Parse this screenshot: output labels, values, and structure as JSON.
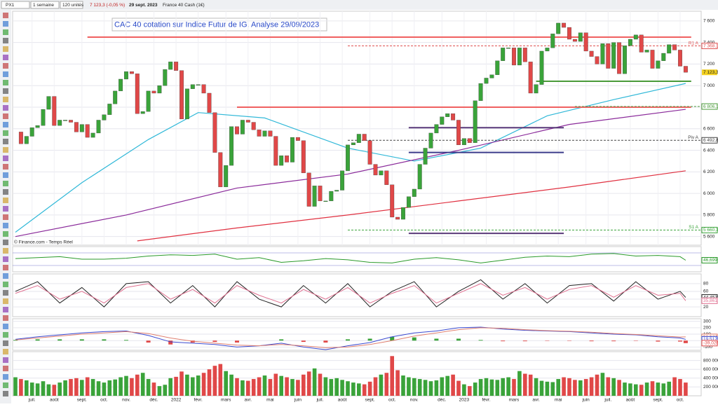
{
  "toolbar": {
    "symbol": "PX1",
    "period": "1 semaine",
    "units": "120 unités",
    "quote": "7 123,3 (-0,05 %)",
    "date": "29 sept. 2023",
    "instrument": "France 40 Cash (1€)"
  },
  "chart_data": [
    {
      "type": "candlestick",
      "title": "CAC 40 cotation sur Indice Futur de IG. Analyse 29/09/2023",
      "up_color": "#3aa33a",
      "down_color": "#e04848",
      "values": [
        6570,
        6460,
        6530,
        6610,
        6630,
        6780,
        6900,
        6630,
        6680,
        6680,
        6660,
        6570,
        6640,
        6520,
        6560,
        6680,
        6730,
        6830,
        6950,
        7060,
        7130,
        7110,
        6740,
        6760,
        6950,
        6930,
        7000,
        7150,
        7220,
        7140,
        6690,
        6970,
        7010,
        7010,
        6930,
        6750,
        6380,
        6060,
        6260,
        6620,
        6550,
        6680,
        6660,
        6590,
        6530,
        6580,
        6530,
        6260,
        6350,
        6290,
        6520,
        6490,
        6190,
        5880,
        6070,
        5930,
        5930,
        6020,
        6030,
        6210,
        6450,
        6470,
        6550,
        6490,
        6270,
        6170,
        6210,
        6080,
        5780,
        5760,
        5870,
        5970,
        6040,
        6270,
        6420,
        6560,
        6640,
        6710,
        6740,
        6680,
        6450,
        6510,
        6470,
        6860,
        7020,
        7070,
        7100,
        7230,
        7350,
        7350,
        7190,
        7350,
        7220,
        6930,
        7010,
        7320,
        7350,
        7480,
        7580,
        7540,
        7430,
        7410,
        7490,
        7320,
        7270,
        7200,
        7390,
        7160,
        7400,
        7110,
        7370,
        7430,
        7470,
        7310,
        7330,
        7160,
        7230,
        7300,
        7380,
        7330,
        7180,
        7123.3
      ],
      "ylim": [
        5520,
        7690
      ],
      "yticks": [
        {
          "value": 5600,
          "label": "5 600"
        },
        {
          "value": 5800,
          "label": "5 800"
        },
        {
          "value": 6000,
          "label": "6 000"
        },
        {
          "value": 6200,
          "label": "6 200"
        },
        {
          "value": 6400,
          "label": "6 400"
        },
        {
          "value": 6600,
          "label": "6 600"
        },
        {
          "value": 6800,
          "label": "6 800"
        },
        {
          "value": 7000,
          "label": "7 000"
        },
        {
          "value": 7200,
          "label": "7 200"
        },
        {
          "value": 7400,
          "label": "7 400"
        },
        {
          "value": 7600,
          "label": "7 600"
        }
      ],
      "xticks": [
        {
          "value": 3,
          "label": "juil."
        },
        {
          "value": 7,
          "label": "août"
        },
        {
          "value": 12,
          "label": "sept."
        },
        {
          "value": 16,
          "label": "oct."
        },
        {
          "value": 20,
          "label": "nov."
        },
        {
          "value": 25,
          "label": "déc."
        },
        {
          "value": 29,
          "label": "2022"
        },
        {
          "value": 33,
          "label": "févr."
        },
        {
          "value": 38,
          "label": "mars"
        },
        {
          "value": 42,
          "label": "avr."
        },
        {
          "value": 46,
          "label": "mai"
        },
        {
          "value": 51,
          "label": "juin"
        },
        {
          "value": 55,
          "label": "juil."
        },
        {
          "value": 59,
          "label": "août"
        },
        {
          "value": 64,
          "label": "sept."
        },
        {
          "value": 68,
          "label": "oct."
        },
        {
          "value": 72,
          "label": "nov."
        },
        {
          "value": 77,
          "label": "déc."
        },
        {
          "value": 81,
          "label": "2023"
        },
        {
          "value": 85,
          "label": "févr."
        },
        {
          "value": 90,
          "label": "mars"
        },
        {
          "value": 94,
          "label": "avr."
        },
        {
          "value": 98,
          "label": "mai"
        },
        {
          "value": 103,
          "label": "juin"
        },
        {
          "value": 107,
          "label": "juil."
        },
        {
          "value": 111,
          "label": "août"
        },
        {
          "value": 116,
          "label": "sept."
        },
        {
          "value": 120,
          "label": "oct."
        }
      ],
      "series": [
        {
          "color": "#30b8d8",
          "x": [
            0,
            12,
            24,
            33,
            45,
            60,
            72,
            84,
            96,
            108,
            121
          ],
          "values": [
            5640,
            6100,
            6500,
            6750,
            6700,
            6420,
            6300,
            6420,
            6720,
            6870,
            7020
          ]
        },
        {
          "color": "#8a2a9a",
          "x": [
            0,
            20,
            40,
            60,
            80,
            100,
            121
          ],
          "values": [
            5600,
            5800,
            6050,
            6180,
            6400,
            6640,
            6780
          ]
        },
        {
          "color": "#e03040",
          "x": [
            22,
            40,
            60,
            80,
            100,
            121
          ],
          "values": [
            5560,
            5680,
            5800,
            5930,
            6060,
            6210
          ]
        }
      ],
      "lines": [
        {
          "value": 7450,
          "color": "#f06060",
          "x": [
            13,
            122
          ]
        },
        {
          "value": 6800,
          "color": "#f06060",
          "x": [
            40,
            122
          ]
        },
        {
          "value": 7040,
          "color": "#4a9a3a",
          "x": [
            94,
            122
          ]
        },
        {
          "value": 6610,
          "color": "#5a3a7a",
          "x": [
            71,
            99
          ]
        },
        {
          "value": 6380,
          "color": "#3a3a8a",
          "x": [
            71,
            99
          ]
        },
        {
          "value": 5630,
          "color": "#5a3a7a",
          "x": [
            71,
            99
          ]
        }
      ],
      "levels": [
        {
          "name": "R1 A",
          "value": 7368.1,
          "label": "7 368,1",
          "color": "#e05050",
          "x": [
            60,
            122
          ]
        },
        {
          "value": 6806.1,
          "label": "6 806,1",
          "color": "#4a9a3a",
          "x": [
            101,
            122
          ]
        },
        {
          "name": "Piv A",
          "value": 6492.8,
          "label": "6 492,8",
          "color": "#444444",
          "x": [
            60,
            122
          ]
        },
        {
          "name": "S1 A",
          "value": 5660.3,
          "label": "5 660,3",
          "color": "#3aa33a",
          "x": [
            60,
            122
          ]
        }
      ],
      "last_label": {
        "value": 7123.3,
        "label": "7 123,3"
      }
    },
    {
      "type": "line",
      "source": "© Finance.com - Temps Réel",
      "ylim": [
        10,
        90
      ],
      "hlines": [
        70,
        30
      ],
      "series": [
        {
          "color": "#2a9a2a",
          "x": [
            0,
            4,
            8,
            12,
            16,
            20,
            24,
            28,
            32,
            36,
            40,
            44,
            48,
            52,
            56,
            60,
            64,
            68,
            72,
            76,
            80,
            84,
            88,
            92,
            96,
            100,
            104,
            108,
            112,
            116,
            120,
            121
          ],
          "values": [
            52,
            55,
            58,
            50,
            50,
            53,
            60,
            64,
            62,
            66,
            50,
            55,
            40,
            45,
            52,
            48,
            40,
            38,
            50,
            55,
            48,
            38,
            47,
            56,
            60,
            58,
            66,
            68,
            60,
            62,
            58,
            46.699
          ]
        }
      ],
      "last_labels": [
        {
          "value": 46.699,
          "label": "46,699"
        }
      ]
    },
    {
      "type": "line",
      "ylim": [
        -5,
        105
      ],
      "yticks": [
        20,
        40,
        60,
        80
      ],
      "series": [
        {
          "color": "#222222",
          "x": [
            0,
            4,
            8,
            12,
            16,
            20,
            24,
            28,
            32,
            36,
            40,
            44,
            48,
            52,
            56,
            60,
            64,
            68,
            72,
            76,
            80,
            84,
            88,
            92,
            96,
            100,
            104,
            108,
            112,
            116,
            120,
            121
          ],
          "values": [
            60,
            85,
            30,
            70,
            20,
            80,
            85,
            30,
            75,
            20,
            85,
            40,
            20,
            75,
            30,
            80,
            20,
            60,
            85,
            20,
            60,
            90,
            40,
            80,
            30,
            75,
            80,
            35,
            85,
            40,
            60,
            44.452
          ]
        },
        {
          "color": "#e07090",
          "x": [
            0,
            4,
            8,
            12,
            16,
            20,
            24,
            28,
            32,
            36,
            40,
            44,
            48,
            52,
            56,
            60,
            64,
            68,
            72,
            76,
            80,
            84,
            88,
            92,
            96,
            100,
            104,
            108,
            112,
            116,
            120,
            121
          ],
          "values": [
            55,
            75,
            40,
            60,
            30,
            70,
            80,
            40,
            65,
            30,
            75,
            50,
            30,
            65,
            40,
            70,
            30,
            55,
            75,
            30,
            55,
            80,
            50,
            70,
            40,
            65,
            75,
            45,
            75,
            50,
            55,
            35.861
          ]
        }
      ],
      "last_labels": [
        {
          "value": 44.452,
          "label": "44,452"
        },
        {
          "value": 35.861,
          "label": "35,861"
        }
      ]
    },
    {
      "type": "macd",
      "ylim": [
        -150,
        340
      ],
      "yticks": [
        -100,
        0,
        100,
        200,
        300
      ],
      "x": [
        0,
        4,
        8,
        12,
        16,
        20,
        24,
        28,
        32,
        36,
        40,
        44,
        48,
        52,
        56,
        60,
        64,
        68,
        72,
        76,
        80,
        84,
        88,
        92,
        96,
        100,
        104,
        108,
        112,
        116,
        120,
        121
      ],
      "histogram": [
        10,
        20,
        20,
        20,
        20,
        10,
        -30,
        -60,
        -30,
        -20,
        -30,
        0,
        20,
        -20,
        -30,
        20,
        30,
        60,
        50,
        30,
        30,
        10,
        -10,
        -10,
        -5,
        -5,
        -10,
        -10,
        -5,
        -15,
        -15,
        -39.025
      ],
      "series": [
        {
          "color": "#3a4ad0",
          "values": [
            20,
            60,
            90,
            120,
            140,
            150,
            80,
            -20,
            -40,
            -60,
            -100,
            -80,
            -40,
            -100,
            -140,
            -80,
            -30,
            60,
            120,
            150,
            200,
            210,
            180,
            160,
            150,
            140,
            120,
            100,
            90,
            60,
            40,
            19.512
          ]
        },
        {
          "color": "#e08070",
          "values": [
            10,
            40,
            70,
            100,
            120,
            140,
            110,
            40,
            -10,
            -40,
            -70,
            -80,
            -60,
            -80,
            -110,
            -100,
            -60,
            0,
            70,
            120,
            170,
            200,
            190,
            170,
            155,
            145,
            130,
            110,
            95,
            75,
            55,
            58.537
          ]
        }
      ],
      "last_labels": [
        {
          "value": 58.537,
          "label": "58,537"
        },
        {
          "value": 19.512,
          "label": "19,512"
        },
        {
          "value": -39.025,
          "label": "-39,025"
        }
      ]
    },
    {
      "type": "volume",
      "ylim": [
        0,
        1000000
      ],
      "yticks": [
        {
          "value": 200000,
          "label": "200 000"
        },
        {
          "value": 400000,
          "label": "400 000"
        },
        {
          "value": 600000,
          "label": "600 000"
        },
        {
          "value": 800000,
          "label": "800 000"
        }
      ],
      "values": [
        420000,
        380000,
        350000,
        300000,
        280000,
        330000,
        260000,
        250000,
        300000,
        350000,
        380000,
        400000,
        360000,
        420000,
        380000,
        330000,
        300000,
        350000,
        370000,
        420000,
        450000,
        400000,
        480000,
        520000,
        380000,
        300000,
        220000,
        250000,
        400000,
        430000,
        550000,
        480000,
        420000,
        460000,
        520000,
        600000,
        680000,
        720000,
        560000,
        480000,
        400000,
        350000,
        340000,
        380000,
        420000,
        460000,
        380000,
        500000,
        450000,
        420000,
        380000,
        360000,
        480000,
        550000,
        620000,
        500000,
        420000,
        380000,
        400000,
        360000,
        330000,
        300000,
        280000,
        260000,
        320000,
        420000,
        480000,
        520000,
        900000,
        580000,
        460000,
        420000,
        400000,
        380000,
        360000,
        330000,
        350000,
        420000,
        450000,
        480000,
        340000,
        260000,
        220000,
        300000,
        380000,
        400000,
        370000,
        360000,
        400000,
        420000,
        380000,
        560000,
        500000,
        480000,
        400000,
        340000,
        320000,
        310000,
        380000,
        420000,
        400000,
        360000,
        350000,
        380000,
        420000,
        480000,
        520000,
        420000,
        400000,
        360000,
        300000,
        280000,
        260000,
        250000,
        300000,
        330000,
        300000,
        280000,
        320000,
        420000,
        380000,
        300000
      ]
    }
  ]
}
